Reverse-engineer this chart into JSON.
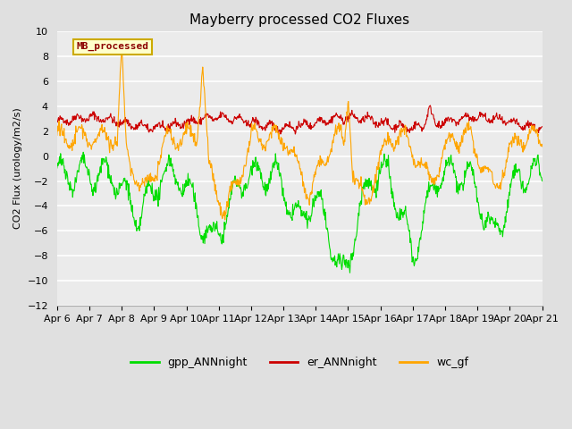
{
  "title": "Mayberry processed CO2 Fluxes",
  "ylabel": "CO2 Flux (urology/m2/s)",
  "ylim": [
    -12,
    10
  ],
  "yticks": [
    -12,
    -10,
    -8,
    -6,
    -4,
    -2,
    0,
    2,
    4,
    6,
    8,
    10
  ],
  "xticklabels": [
    "Apr 6",
    "Apr 7",
    "Apr 8",
    "Apr 9",
    "Apr 10",
    "Apr 11",
    "Apr 12",
    "Apr 13",
    "Apr 14",
    "Apr 15",
    "Apr 16",
    "Apr 17",
    "Apr 18",
    "Apr 19",
    "Apr 20",
    "Apr 21"
  ],
  "n_points": 960,
  "legend_label_gpp": "gpp_ANNnight",
  "legend_label_er": "er_ANNnight",
  "legend_label_wc": "wc_gf",
  "color_gpp": "#00DD00",
  "color_er": "#CC0000",
  "color_wc": "#FFA500",
  "inset_label": "MB_processed",
  "inset_color": "#8B0000",
  "inset_bg": "#FFFFCC",
  "inset_edge": "#CCAA00",
  "bg_color": "#E0E0E0",
  "plot_bg": "#EBEBEB",
  "linewidth": 0.8,
  "title_fontsize": 11,
  "axis_fontsize": 8,
  "legend_fontsize": 9
}
